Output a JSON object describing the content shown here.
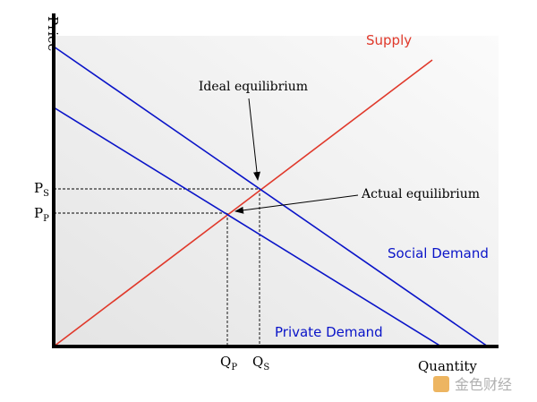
{
  "axes": {
    "y_label": "Price",
    "x_label": "Quantity"
  },
  "curves": {
    "supply": "Supply",
    "social_demand": "Social Demand",
    "private_demand": "Private Demand"
  },
  "annotations": {
    "ideal": "Ideal equilibrium",
    "actual": "Actual equilibrium"
  },
  "ticks": {
    "ps": {
      "main": "P",
      "sub": "S"
    },
    "pp": {
      "main": "P",
      "sub": "P"
    },
    "qp": {
      "main": "Q",
      "sub": "P"
    },
    "qs": {
      "main": "Q",
      "sub": "S"
    }
  },
  "watermark": "金色财经"
}
